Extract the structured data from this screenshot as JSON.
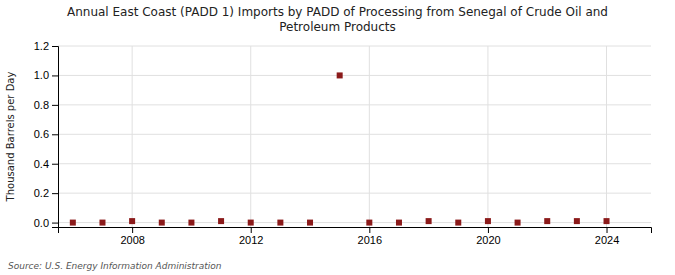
{
  "chart_data": {
    "type": "scatter",
    "title": "Annual East Coast (PADD 1) Imports by PADD of Processing from Senegal of Crude Oil and\nPetroleum Products",
    "y_label": "Thousand Barrels per Day",
    "source": "Source: U.S. Energy Information Administration",
    "x": [
      2006,
      2007,
      2008,
      2009,
      2010,
      2011,
      2012,
      2013,
      2014,
      2015,
      2016,
      2017,
      2018,
      2019,
      2020,
      2021,
      2022,
      2023,
      2024
    ],
    "values": [
      0.0,
      0.0,
      0.01,
      0.0,
      0.0,
      0.01,
      0.0,
      0.0,
      0.0,
      1.0,
      0.0,
      0.0,
      0.01,
      0.0,
      0.01,
      0.0,
      0.01,
      0.01,
      0.01
    ],
    "color": "#8b1a1a",
    "marker": "square",
    "xlim": [
      2005.5,
      2025.5
    ],
    "xticks": [
      2008,
      2012,
      2016,
      2020,
      2024
    ],
    "ylim": [
      -0.03,
      1.2
    ],
    "yticks": [
      {
        "value": 0.0,
        "label": "0.0"
      },
      0.2,
      0.4,
      0.6,
      0.8,
      {
        "value": 1.0,
        "label": "1.0"
      },
      1.2
    ],
    "grid": true
  }
}
